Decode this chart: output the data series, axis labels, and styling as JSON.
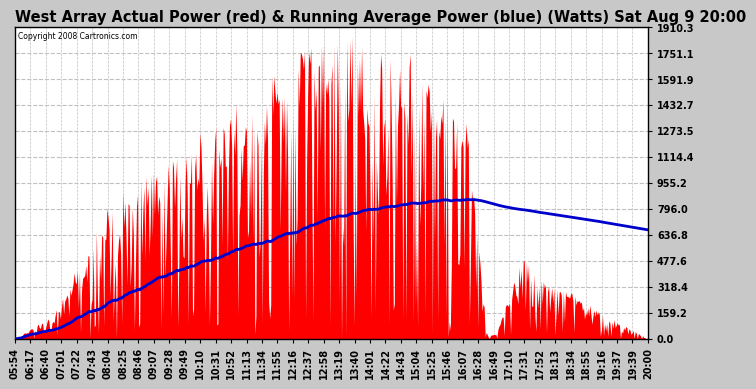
{
  "title": "West Array Actual Power (red) & Running Average Power (blue) (Watts) Sat Aug 9 20:00",
  "copyright": "Copyright 2008 Cartronics.com",
  "ymax": 1910.3,
  "ymin": 0.0,
  "yticks": [
    0.0,
    159.2,
    318.4,
    477.6,
    636.8,
    796.0,
    955.2,
    1114.4,
    1273.5,
    1432.7,
    1591.9,
    1751.1,
    1910.3
  ],
  "xtick_labels": [
    "05:54",
    "06:17",
    "06:40",
    "07:01",
    "07:22",
    "07:43",
    "08:04",
    "08:25",
    "08:46",
    "09:07",
    "09:28",
    "09:49",
    "10:10",
    "10:31",
    "10:52",
    "11:13",
    "11:34",
    "11:55",
    "12:16",
    "12:37",
    "12:58",
    "13:19",
    "13:40",
    "14:01",
    "14:22",
    "14:43",
    "15:04",
    "15:25",
    "15:46",
    "16:07",
    "16:28",
    "16:49",
    "17:10",
    "17:31",
    "17:52",
    "18:13",
    "18:34",
    "18:55",
    "19:16",
    "19:37",
    "19:39",
    "20:00"
  ],
  "background_color": "#c8c8c8",
  "plot_bg_color": "#ffffff",
  "actual_color": "#ff0000",
  "avg_color": "#0000cc",
  "grid_color": "#c0c0c0",
  "title_fontsize": 10.5,
  "tick_fontsize": 7
}
